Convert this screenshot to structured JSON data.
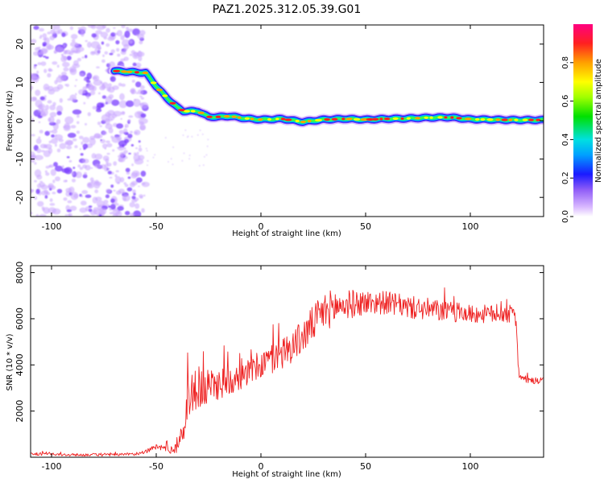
{
  "title": "PAZ1.2025.312.05.39.G01",
  "colors": {
    "snr_line": "#ee2222",
    "frame": "#000000",
    "cool_blob": "#7a3cff"
  },
  "chart_data": [
    {
      "id": "spectrogram",
      "type": "heatmap",
      "title": "PAZ1.2025.312.05.39.G01",
      "xlabel": "Height of straight line (km)",
      "ylabel": "Frequency (Hz)",
      "xlim": [
        -110,
        135
      ],
      "ylim": [
        -25,
        25
      ],
      "xticks": [
        -100,
        -50,
        0,
        50,
        100
      ],
      "yticks": [
        20,
        10,
        0,
        -10,
        -20
      ],
      "noise_region": {
        "x_range": [
          -110,
          -55
        ],
        "amplitude_approx": 0.1
      },
      "signal_track": {
        "x": [
          -70,
          -55,
          -50,
          -45,
          -40,
          -37,
          -30,
          -25,
          -20,
          -15,
          -10,
          -5,
          0,
          10,
          20,
          30,
          40,
          50,
          60,
          70,
          80,
          90,
          100,
          110,
          120,
          135
        ],
        "frequency": [
          13,
          12.5,
          9,
          6,
          3.5,
          2.5,
          2.5,
          1,
          1,
          1.2,
          0.8,
          0.5,
          0.3,
          0.5,
          -0.3,
          0.3,
          0.5,
          0.3,
          0.5,
          0.6,
          0.8,
          0.9,
          0.4,
          0.3,
          0.2,
          0.2
        ]
      },
      "colorbar": {
        "label": "Normalized spectral amplitude",
        "range": [
          0,
          1
        ],
        "ticks": [
          "0.0",
          "0.2",
          "0.4",
          "0.6",
          "0.8"
        ],
        "ticks_values": [
          0,
          0.2,
          0.4,
          0.6,
          0.8
        ]
      }
    },
    {
      "id": "snr",
      "type": "line",
      "xlabel": "Height of straight line (km)",
      "ylabel": "SNR (10 * v/v)",
      "xlim": [
        -110,
        135
      ],
      "ylim": [
        0,
        8300
      ],
      "xticks": [
        -100,
        -50,
        0,
        50,
        100
      ],
      "yticks": [
        2000,
        4000,
        6000,
        8000
      ],
      "series": [
        {
          "name": "SNR",
          "x": [
            -110,
            -100,
            -90,
            -80,
            -70,
            -60,
            -55,
            -50,
            -45,
            -42,
            -40,
            -38,
            -36,
            -35,
            -33,
            -30,
            -25,
            -20,
            -15,
            -10,
            -5,
            0,
            10,
            20,
            25,
            30,
            35,
            40,
            50,
            60,
            70,
            80,
            90,
            100,
            110,
            120,
            122,
            123,
            125,
            130,
            135
          ],
          "values": [
            150,
            120,
            100,
            110,
            100,
            130,
            250,
            450,
            400,
            300,
            500,
            900,
            1600,
            2600,
            2800,
            2700,
            3000,
            3200,
            3300,
            3500,
            3700,
            4000,
            4500,
            5200,
            5800,
            6300,
            6500,
            6600,
            6700,
            6700,
            6500,
            6400,
            6300,
            6200,
            6200,
            6200,
            6000,
            3600,
            3400,
            3300,
            3300
          ],
          "noise_amplitude": [
            60,
            60,
            60,
            60,
            60,
            60,
            80,
            120,
            150,
            200,
            300,
            400,
            700,
            900,
            800,
            800,
            800,
            700,
            700,
            600,
            600,
            650,
            700,
            750,
            800,
            850,
            800,
            650,
            550,
            500,
            500,
            500,
            450,
            400,
            400,
            400,
            400,
            150,
            150,
            150,
            150
          ]
        }
      ]
    }
  ]
}
